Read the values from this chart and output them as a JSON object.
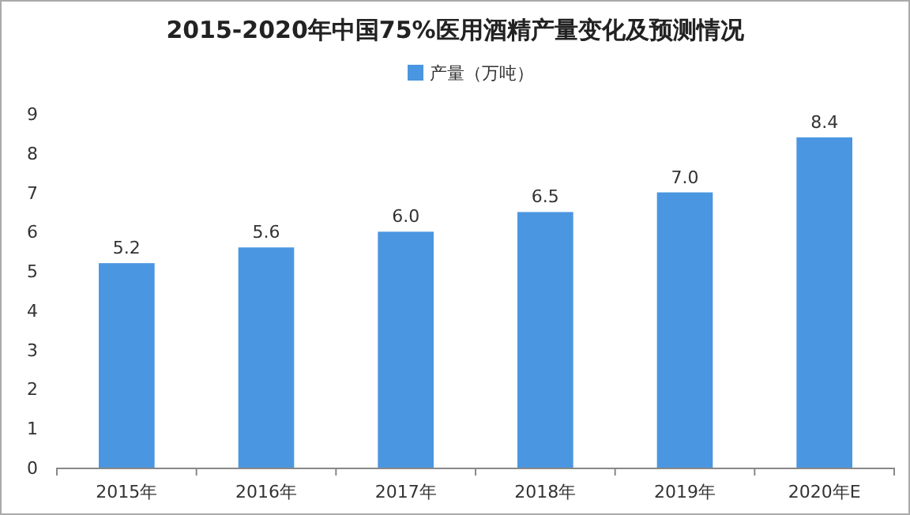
{
  "chart_data": {
    "type": "bar",
    "title": "2015-2020年中国75%医用酒精产量变化及预测情况",
    "categories": [
      "2015年",
      "2016年",
      "2017年",
      "2018年",
      "2019年",
      "2020年E"
    ],
    "series": [
      {
        "name": "产量（万吨）",
        "color": "#4b96e0",
        "values": [
          5.2,
          5.6,
          6.0,
          6.5,
          7.0,
          8.4
        ],
        "value_labels": [
          "5.2",
          "5.6",
          "6.0",
          "6.5",
          "7.0",
          "8.4"
        ]
      }
    ],
    "ylim": [
      0,
      9
    ],
    "yticks": [
      0,
      1,
      2,
      3,
      4,
      5,
      6,
      7,
      8,
      9
    ],
    "grid": false,
    "legend": "top"
  }
}
